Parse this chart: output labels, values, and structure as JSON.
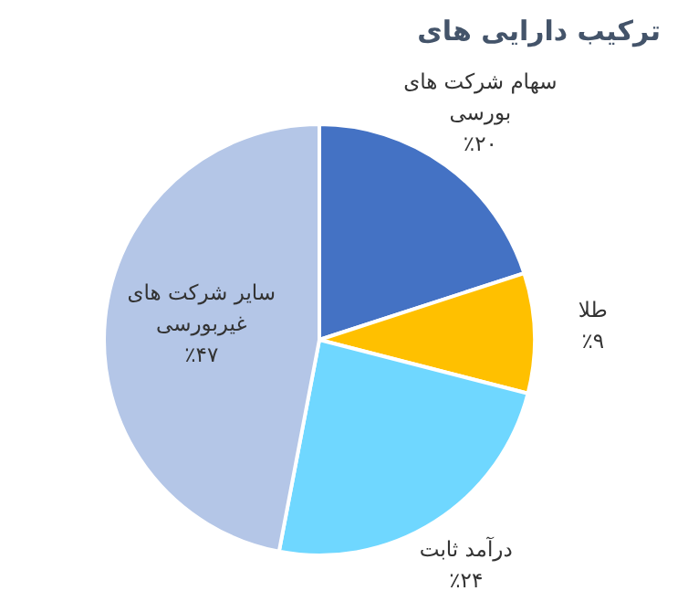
{
  "chart_data": {
    "type": "pie",
    "title": "ترکیب دارایی های",
    "categories": [
      "سهام شرکت های بورسی",
      "طلا",
      "درآمد ثابت",
      "سایر شرکت های غیربورسی"
    ],
    "values": [
      20,
      9,
      24,
      47
    ],
    "value_labels": [
      "٪۲۰",
      "٪۹",
      "٪۲۴",
      "٪۴۷"
    ],
    "colors": [
      "#4472c4",
      "#ffc000",
      "#6fd7ff",
      "#b4c6e7"
    ]
  }
}
